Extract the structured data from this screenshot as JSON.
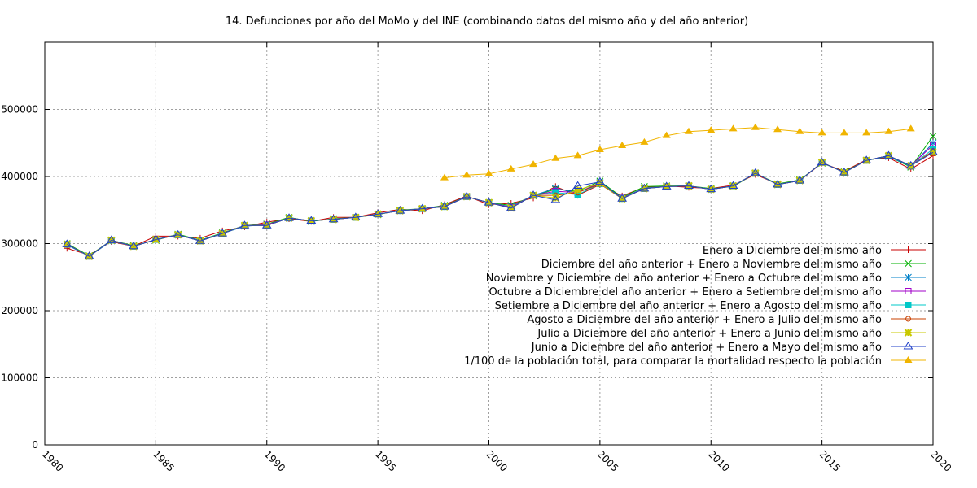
{
  "chart_data": {
    "type": "line",
    "title": "14. Defunciones por año del MoMo y del INE (combinando datos del mismo año y del año anterior)",
    "xlabel": "",
    "ylabel": "",
    "xlim": [
      1980,
      2020
    ],
    "ylim": [
      0,
      600000
    ],
    "x_ticks": [
      1980,
      1985,
      1990,
      1995,
      2000,
      2005,
      2010,
      2015,
      2020
    ],
    "y_ticks": [
      0,
      100000,
      200000,
      300000,
      400000,
      500000
    ],
    "grid": true,
    "legend_position": "right",
    "series": [
      {
        "name": "Enero a Diciembre del mismo año",
        "color": "#c80000",
        "marker": "plus",
        "x": [
          1981,
          1982,
          1983,
          1984,
          1985,
          1986,
          1987,
          1988,
          1989,
          1990,
          1991,
          1992,
          1993,
          1994,
          1995,
          1996,
          1997,
          1998,
          1999,
          2000,
          2001,
          2002,
          2003,
          2004,
          2005,
          2006,
          2007,
          2008,
          2009,
          2010,
          2011,
          2012,
          2013,
          2014,
          2015,
          2016,
          2017,
          2018,
          2019,
          2020
        ],
        "values": [
          293000,
          283000,
          303000,
          296000,
          311000,
          311000,
          308000,
          319000,
          325000,
          332000,
          337000,
          333000,
          339000,
          339000,
          346000,
          351000,
          349000,
          358000,
          371000,
          358000,
          360000,
          368000,
          385000,
          372000,
          388000,
          371000,
          384000,
          386000,
          384000,
          382000,
          387000,
          403000,
          389000,
          394000,
          420000,
          408000,
          425000,
          428000,
          411000,
          431000
        ]
      },
      {
        "name": "Diciembre del año anterior + Enero a Noviembre del mismo año",
        "color": "#00b000",
        "marker": "x",
        "x": [
          1981,
          1982,
          1983,
          1984,
          1985,
          1986,
          1987,
          1988,
          1989,
          1990,
          1991,
          1992,
          1993,
          1994,
          1995,
          1996,
          1997,
          1998,
          1999,
          2000,
          2001,
          2002,
          2003,
          2004,
          2005,
          2006,
          2007,
          2008,
          2009,
          2010,
          2011,
          2012,
          2013,
          2014,
          2015,
          2016,
          2017,
          2018,
          2019,
          2020
        ],
        "values": [
          300000,
          282000,
          305000,
          297000,
          305000,
          314000,
          305000,
          316000,
          327000,
          329000,
          339000,
          333000,
          337000,
          339000,
          343000,
          350000,
          352000,
          357000,
          370000,
          361000,
          357000,
          371000,
          381000,
          378000,
          393000,
          369000,
          385000,
          386000,
          386000,
          382000,
          385000,
          405000,
          389000,
          395000,
          420000,
          407000,
          424000,
          430000,
          414000,
          460000
        ]
      },
      {
        "name": "Noviembre y Diciembre del año anterior + Enero a Octubre del mismo año",
        "color": "#0080c8",
        "marker": "star",
        "x": [
          1981,
          1982,
          1983,
          1984,
          1985,
          1986,
          1987,
          1988,
          1989,
          1990,
          1991,
          1992,
          1993,
          1994,
          1995,
          1996,
          1997,
          1998,
          1999,
          2000,
          2001,
          2002,
          2003,
          2004,
          2005,
          2006,
          2007,
          2008,
          2009,
          2010,
          2011,
          2012,
          2013,
          2014,
          2015,
          2016,
          2017,
          2018,
          2019,
          2020
        ],
        "values": [
          298000,
          281000,
          304000,
          296000,
          306000,
          313000,
          305000,
          315000,
          326000,
          328000,
          338000,
          334000,
          336000,
          339000,
          344000,
          349000,
          352000,
          356000,
          370000,
          361000,
          355000,
          372000,
          382000,
          376000,
          391000,
          368000,
          383000,
          385000,
          386000,
          381000,
          386000,
          405000,
          388000,
          394000,
          421000,
          406000,
          424000,
          430000,
          415000,
          450000
        ]
      },
      {
        "name": "Octubre a Diciembre del año anterior + Enero a Setiembre del mismo año",
        "color": "#a000c8",
        "marker": "square",
        "x": [
          1981,
          1982,
          1983,
          1984,
          1985,
          1986,
          1987,
          1988,
          1989,
          1990,
          1991,
          1992,
          1993,
          1994,
          1995,
          1996,
          1997,
          1998,
          1999,
          2000,
          2001,
          2002,
          2003,
          2004,
          2005,
          2006,
          2007,
          2008,
          2009,
          2010,
          2011,
          2012,
          2013,
          2014,
          2015,
          2016,
          2017,
          2018,
          2019,
          2020
        ],
        "values": [
          299000,
          281000,
          305000,
          296000,
          306000,
          313000,
          304000,
          315000,
          327000,
          328000,
          338000,
          334000,
          336000,
          339000,
          344000,
          349000,
          352000,
          356000,
          370000,
          361000,
          354000,
          372000,
          378000,
          376000,
          390000,
          368000,
          382000,
          385000,
          386000,
          381000,
          386000,
          405000,
          388000,
          394000,
          421000,
          406000,
          424000,
          431000,
          416000,
          447000
        ]
      },
      {
        "name": "Setiembre a Diciembre del año anterior + Enero a Agosto del mismo año",
        "color": "#00c8c8",
        "marker": "filled-square",
        "x": [
          1981,
          1982,
          1983,
          1984,
          1985,
          1986,
          1987,
          1988,
          1989,
          1990,
          1991,
          1992,
          1993,
          1994,
          1995,
          1996,
          1997,
          1998,
          1999,
          2000,
          2001,
          2002,
          2003,
          2004,
          2005,
          2006,
          2007,
          2008,
          2009,
          2010,
          2011,
          2012,
          2013,
          2014,
          2015,
          2016,
          2017,
          2018,
          2019,
          2020
        ],
        "values": [
          299000,
          281000,
          305000,
          296000,
          306000,
          313000,
          304000,
          315000,
          327000,
          327000,
          338000,
          334000,
          336000,
          339000,
          344000,
          349000,
          352000,
          355000,
          370000,
          361000,
          353000,
          372000,
          376000,
          373000,
          389000,
          367000,
          382000,
          385000,
          386000,
          381000,
          386000,
          405000,
          388000,
          394000,
          421000,
          406000,
          424000,
          431000,
          416000,
          441000
        ]
      },
      {
        "name": "Agosto a Diciembre del año anterior + Enero a Julio del mismo año",
        "color": "#c84000",
        "marker": "circle",
        "x": [
          1981,
          1982,
          1983,
          1984,
          1985,
          1986,
          1987,
          1988,
          1989,
          1990,
          1991,
          1992,
          1993,
          1994,
          1995,
          1996,
          1997,
          1998,
          1999,
          2000,
          2001,
          2002,
          2003,
          2004,
          2005,
          2006,
          2007,
          2008,
          2009,
          2010,
          2011,
          2012,
          2013,
          2014,
          2015,
          2016,
          2017,
          2018,
          2019,
          2020
        ],
        "values": [
          299000,
          281000,
          305000,
          296000,
          306000,
          313000,
          304000,
          315000,
          327000,
          327000,
          338000,
          334000,
          336000,
          339000,
          344000,
          349000,
          352000,
          355000,
          370000,
          361000,
          353000,
          372000,
          372000,
          376000,
          389000,
          367000,
          382000,
          385000,
          386000,
          381000,
          386000,
          405000,
          388000,
          394000,
          421000,
          406000,
          424000,
          431000,
          416000,
          438000
        ]
      },
      {
        "name": "Julio a Diciembre del año anterior + Enero a Junio del mismo año",
        "color": "#c8c800",
        "marker": "filled-star",
        "x": [
          1981,
          1982,
          1983,
          1984,
          1985,
          1986,
          1987,
          1988,
          1989,
          1990,
          1991,
          1992,
          1993,
          1994,
          1995,
          1996,
          1997,
          1998,
          1999,
          2000,
          2001,
          2002,
          2003,
          2004,
          2005,
          2006,
          2007,
          2008,
          2009,
          2010,
          2011,
          2012,
          2013,
          2014,
          2015,
          2016,
          2017,
          2018,
          2019,
          2020
        ],
        "values": [
          299000,
          281000,
          305000,
          296000,
          306000,
          313000,
          304000,
          315000,
          327000,
          327000,
          338000,
          334000,
          336000,
          339000,
          344000,
          349000,
          352000,
          355000,
          370000,
          361000,
          353000,
          372000,
          368000,
          380000,
          390000,
          367000,
          382000,
          385000,
          386000,
          381000,
          386000,
          405000,
          388000,
          394000,
          421000,
          406000,
          424000,
          431000,
          416000,
          436000
        ]
      },
      {
        "name": "Junio a Diciembre del año anterior + Enero a Mayo del mismo año",
        "color": "#2040c8",
        "marker": "triangle",
        "x": [
          1981,
          1982,
          1983,
          1984,
          1985,
          1986,
          1987,
          1988,
          1989,
          1990,
          1991,
          1992,
          1993,
          1994,
          1995,
          1996,
          1997,
          1998,
          1999,
          2000,
          2001,
          2002,
          2003,
          2004,
          2005,
          2006,
          2007,
          2008,
          2009,
          2010,
          2011,
          2012,
          2013,
          2014,
          2015,
          2016,
          2017,
          2018,
          2019,
          2020
        ],
        "values": [
          299000,
          281000,
          305000,
          296000,
          306000,
          313000,
          304000,
          315000,
          327000,
          327000,
          338000,
          334000,
          336000,
          339000,
          344000,
          349000,
          352000,
          355000,
          370000,
          361000,
          353000,
          372000,
          365000,
          386000,
          392000,
          367000,
          382000,
          385000,
          386000,
          381000,
          386000,
          405000,
          388000,
          394000,
          421000,
          406000,
          424000,
          431000,
          416000,
          436000
        ]
      },
      {
        "name": "1/100 de la población total, para comparar la mortalidad respecto la población",
        "color": "#f0b400",
        "marker": "filled-triangle",
        "x": [
          1998,
          1999,
          2000,
          2001,
          2002,
          2003,
          2004,
          2005,
          2006,
          2007,
          2008,
          2009,
          2010,
          2011,
          2012,
          2013,
          2014,
          2015,
          2016,
          2017,
          2018,
          2019
        ],
        "values": [
          398000,
          402000,
          404000,
          411000,
          418000,
          427000,
          431000,
          440000,
          446000,
          451000,
          461000,
          467000,
          469000,
          471000,
          473000,
          470000,
          467000,
          465000,
          465000,
          465000,
          467000,
          471000
        ]
      }
    ]
  }
}
